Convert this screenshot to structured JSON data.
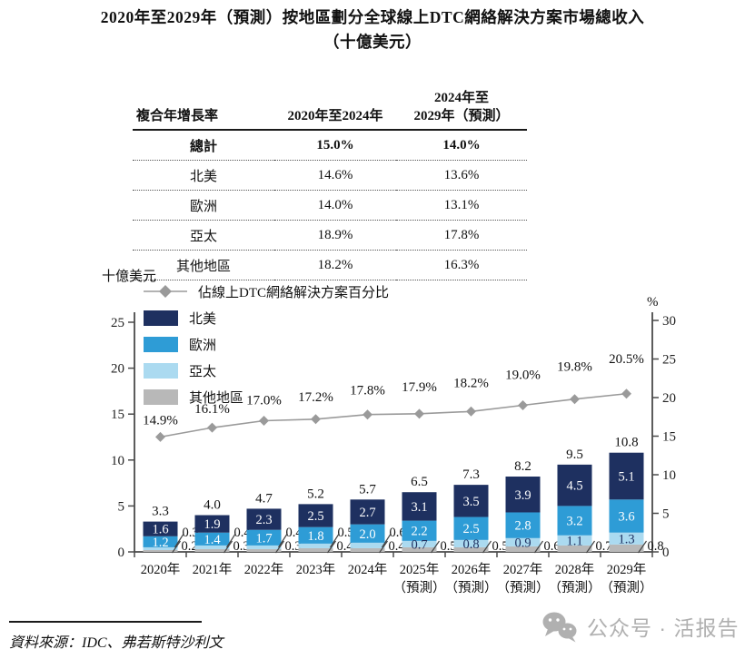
{
  "title": {
    "line1": "2020年至2029年（預測）按地區劃分全球線上DTC網絡解決方案市場總收入",
    "line2": "（十億美元）"
  },
  "table": {
    "header": {
      "col1": "複合年增長率",
      "col2": "2020年至2024年",
      "col3_line1": "2024年至",
      "col3_line2": "2029年（預測）"
    },
    "rows": [
      {
        "label": "總計",
        "cagr_2020_2024": "15.0%",
        "cagr_2024_2029": "14.0%"
      },
      {
        "label": "北美",
        "cagr_2020_2024": "14.6%",
        "cagr_2024_2029": "13.6%"
      },
      {
        "label": "歐洲",
        "cagr_2020_2024": "14.0%",
        "cagr_2024_2029": "13.1%"
      },
      {
        "label": "亞太",
        "cagr_2020_2024": "18.9%",
        "cagr_2024_2029": "17.8%"
      },
      {
        "label": "其他地區",
        "cagr_2020_2024": "18.2%",
        "cagr_2024_2029": "16.3%"
      }
    ]
  },
  "chart_data": {
    "type": "bar+line",
    "title": "2020年至2029年（預測）按地區劃分全球線上DTC網絡解決方案市場總收入（十億美元）",
    "categories": [
      "2020年",
      "2021年",
      "2022年",
      "2023年",
      "2024年",
      "2025年",
      "2026年",
      "2027年",
      "2028年",
      "2029年"
    ],
    "forecast_suffix": "（預測）",
    "forecast_from_index": 5,
    "series": [
      {
        "name": "北美",
        "color": "#1e3060",
        "values": [
          1.6,
          1.9,
          2.3,
          2.5,
          2.7,
          3.1,
          3.5,
          3.9,
          4.5,
          5.1
        ]
      },
      {
        "name": "歐洲",
        "color": "#2e9cd6",
        "values": [
          1.2,
          1.4,
          1.7,
          1.8,
          2.0,
          2.2,
          2.5,
          2.8,
          3.2,
          3.6
        ]
      },
      {
        "name": "亞太",
        "color": "#abdaf0",
        "values": [
          0.3,
          0.4,
          0.4,
          0.5,
          0.6,
          0.7,
          0.8,
          0.9,
          1.1,
          1.3
        ]
      },
      {
        "name": "其他地區",
        "color": "#b8b8b8",
        "values": [
          0.2,
          0.3,
          0.3,
          0.4,
          0.4,
          0.5,
          0.5,
          0.6,
          0.7,
          0.8
        ]
      }
    ],
    "totals": [
      3.3,
      4.0,
      4.7,
      5.2,
      5.7,
      6.5,
      7.3,
      8.2,
      9.5,
      10.8
    ],
    "line": {
      "name": "佔線上DTC網絡解決方案百分比",
      "color": "#9a9a9a",
      "values": [
        14.9,
        16.1,
        17.0,
        17.2,
        17.8,
        17.9,
        18.2,
        19.0,
        19.8,
        20.5
      ],
      "labels": [
        "14.9%",
        "16.1%",
        "17.0%",
        "17.2%",
        "17.8%",
        "17.9%",
        "18.2%",
        "19.0%",
        "19.8%",
        "20.5%"
      ]
    },
    "left_axis": {
      "label": "十億美元",
      "min": 0,
      "max": 25,
      "step": 5
    },
    "right_axis": {
      "label": "%",
      "min": 0,
      "max": 30,
      "step": 5
    },
    "legend_position": "top-left",
    "grid": false
  },
  "source": {
    "text": "資料來源：IDC、弗若斯特沙利文"
  },
  "watermark": {
    "text": "公众号 · 活报告"
  }
}
